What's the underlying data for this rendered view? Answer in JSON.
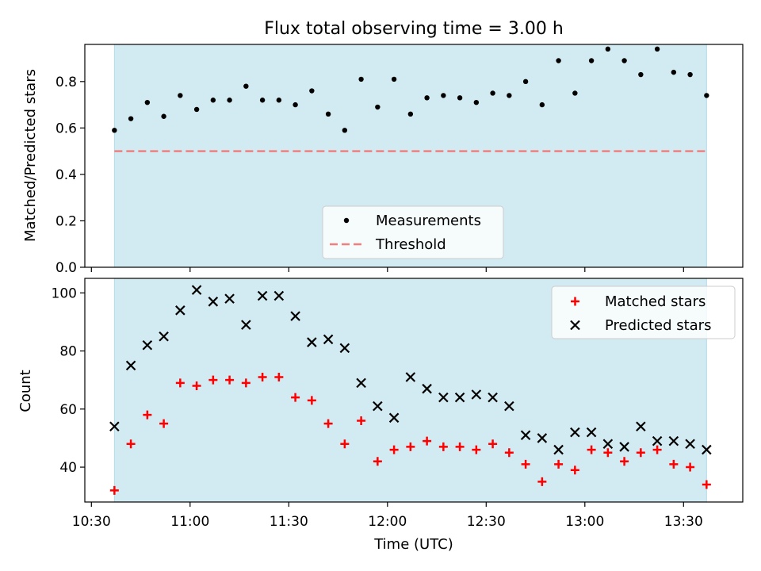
{
  "figure": {
    "title": "Flux total observing time = 3.00 h",
    "x_label": "Time (UTC)",
    "x_ticks": [
      "10:30",
      "11:00",
      "11:30",
      "12:00",
      "12:30",
      "13:00",
      "13:30"
    ],
    "top_y_label": "Matched/Predicted stars",
    "bottom_y_label": "Count"
  },
  "colors": {
    "shade": "#add8e6",
    "threshold": "#f08080",
    "matched": "#ff0000",
    "predicted": "#000000",
    "ratio": "#000000"
  },
  "chart_data": [
    {
      "type": "scatter",
      "title": "Flux total observing time = 3.00 h",
      "ylabel": "Matched/Predicted stars",
      "xlim": [
        "10:28",
        "13:48"
      ],
      "ylim": [
        0,
        0.96
      ],
      "y_ticks": [
        0.0,
        0.2,
        0.4,
        0.6,
        0.8
      ],
      "shaded_span": [
        "10:37",
        "13:37"
      ],
      "legend_position": "lower center",
      "series": [
        {
          "name": "Measurements",
          "marker": "dot",
          "x": [
            "10:37",
            "10:42",
            "10:47",
            "10:52",
            "10:57",
            "11:02",
            "11:07",
            "11:12",
            "11:17",
            "11:22",
            "11:27",
            "11:32",
            "11:37",
            "11:42",
            "11:47",
            "11:52",
            "11:57",
            "12:02",
            "12:07",
            "12:12",
            "12:17",
            "12:22",
            "12:27",
            "12:32",
            "12:37",
            "12:42",
            "12:47",
            "12:52",
            "12:57",
            "13:02",
            "13:07",
            "13:12",
            "13:17",
            "13:22",
            "13:27",
            "13:32",
            "13:37"
          ],
          "y": [
            0.59,
            0.64,
            0.71,
            0.65,
            0.74,
            0.68,
            0.72,
            0.72,
            0.78,
            0.72,
            0.72,
            0.7,
            0.76,
            0.66,
            0.59,
            0.81,
            0.69,
            0.81,
            0.66,
            0.73,
            0.74,
            0.73,
            0.71,
            0.75,
            0.74,
            0.8,
            0.7,
            0.89,
            0.75,
            0.89,
            0.94,
            0.89,
            0.83,
            0.94,
            0.84,
            0.83,
            0.74
          ]
        },
        {
          "name": "Threshold",
          "style": "dashed",
          "x": [
            "10:37",
            "13:37"
          ],
          "y": [
            0.5,
            0.5
          ]
        }
      ]
    },
    {
      "type": "scatter",
      "xlabel": "Time (UTC)",
      "ylabel": "Count",
      "xlim": [
        "10:28",
        "13:48"
      ],
      "ylim": [
        28,
        105
      ],
      "y_ticks": [
        40,
        60,
        80,
        100
      ],
      "shaded_span": [
        "10:37",
        "13:37"
      ],
      "legend_position": "upper right",
      "series": [
        {
          "name": "Matched stars",
          "marker": "plus",
          "x": [
            "10:37",
            "10:42",
            "10:47",
            "10:52",
            "10:57",
            "11:02",
            "11:07",
            "11:12",
            "11:17",
            "11:22",
            "11:27",
            "11:32",
            "11:37",
            "11:42",
            "11:47",
            "11:52",
            "11:57",
            "12:02",
            "12:07",
            "12:12",
            "12:17",
            "12:22",
            "12:27",
            "12:32",
            "12:37",
            "12:42",
            "12:47",
            "12:52",
            "12:57",
            "13:02",
            "13:07",
            "13:12",
            "13:17",
            "13:22",
            "13:27",
            "13:32",
            "13:37"
          ],
          "y": [
            32,
            48,
            58,
            55,
            69,
            68,
            70,
            70,
            69,
            71,
            71,
            64,
            63,
            55,
            48,
            56,
            42,
            46,
            47,
            49,
            47,
            47,
            46,
            48,
            45,
            41,
            35,
            41,
            39,
            46,
            45,
            42,
            45,
            46,
            41,
            40,
            34
          ]
        },
        {
          "name": "Predicted stars",
          "marker": "x",
          "x": [
            "10:37",
            "10:42",
            "10:47",
            "10:52",
            "10:57",
            "11:02",
            "11:07",
            "11:12",
            "11:17",
            "11:22",
            "11:27",
            "11:32",
            "11:37",
            "11:42",
            "11:47",
            "11:52",
            "11:57",
            "12:02",
            "12:07",
            "12:12",
            "12:17",
            "12:22",
            "12:27",
            "12:32",
            "12:37",
            "12:42",
            "12:47",
            "12:52",
            "12:57",
            "13:02",
            "13:07",
            "13:12",
            "13:17",
            "13:22",
            "13:27",
            "13:32",
            "13:37"
          ],
          "y": [
            54,
            75,
            82,
            85,
            94,
            101,
            97,
            98,
            89,
            99,
            99,
            92,
            83,
            84,
            81,
            69,
            61,
            57,
            71,
            67,
            64,
            64,
            65,
            64,
            61,
            51,
            50,
            46,
            52,
            52,
            48,
            47,
            54,
            49,
            49,
            48,
            46
          ]
        }
      ]
    }
  ]
}
